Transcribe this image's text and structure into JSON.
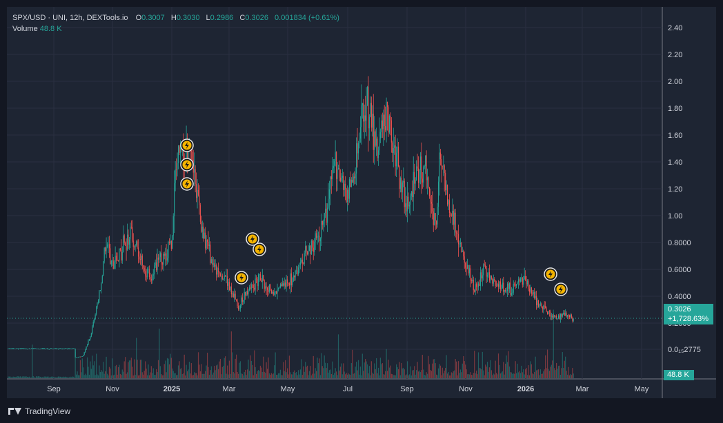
{
  "legend": {
    "symbol": "SPX/USD · UNI, 12h, DEXTools.io",
    "open_k": "O",
    "open_v": "0.3007",
    "high_k": "H",
    "high_v": "0.3030",
    "low_k": "L",
    "low_v": "0.2986",
    "close_k": "C",
    "close_v": "0.3026",
    "change": "0.001834 (+0.61%)",
    "volume_k": "Volume",
    "volume_v": "48.8 K"
  },
  "price_tag": {
    "price": "0.3026",
    "change": "+1,728.63%"
  },
  "volume_tag": "48.8 K",
  "footer": {
    "brand": "TradingView"
  },
  "colors": {
    "up": "#26a69a",
    "down": "#ef5350",
    "background": "#1e2533"
  },
  "chart_data": {
    "type": "candlestick",
    "price_axis": {
      "ticks": [
        "2.40",
        "2.20",
        "2.00",
        "1.80",
        "1.60",
        "1.40",
        "1.20",
        "1.00",
        "0.8000",
        "0.6000",
        "0.4000",
        "0.2000",
        "0.0₁₅2775"
      ]
    },
    "time_axis": {
      "labels": [
        {
          "t": "Sep",
          "bold": false
        },
        {
          "t": "Nov",
          "bold": false
        },
        {
          "t": "2025",
          "bold": true
        },
        {
          "t": "Mar",
          "bold": false
        },
        {
          "t": "May",
          "bold": false
        },
        {
          "t": "Jul",
          "bold": false
        },
        {
          "t": "Sep",
          "bold": false
        },
        {
          "t": "Nov",
          "bold": false
        },
        {
          "t": "2026",
          "bold": true
        },
        {
          "t": "Mar",
          "bold": false
        },
        {
          "t": "May",
          "bold": false
        }
      ]
    },
    "close_series": [
      [
        "2024-08-01",
        0.0003
      ],
      [
        "2024-09-01",
        0.0003
      ],
      [
        "2024-09-15",
        0.0003
      ],
      [
        "2024-10-01",
        0.02
      ],
      [
        "2024-10-10",
        0.2
      ],
      [
        "2024-10-20",
        0.55
      ],
      [
        "2024-10-25",
        0.9
      ],
      [
        "2024-11-01",
        0.68
      ],
      [
        "2024-11-10",
        0.82
      ],
      [
        "2024-11-20",
        0.95
      ],
      [
        "2024-12-01",
        0.7
      ],
      [
        "2024-12-10",
        0.6
      ],
      [
        "2024-12-20",
        0.75
      ],
      [
        "2025-01-01",
        0.85
      ],
      [
        "2025-01-05",
        1.45
      ],
      [
        "2025-01-10",
        1.6
      ],
      [
        "2025-01-15",
        1.45
      ],
      [
        "2025-01-20",
        1.65
      ],
      [
        "2025-02-01",
        0.95
      ],
      [
        "2025-02-15",
        0.65
      ],
      [
        "2025-03-01",
        0.55
      ],
      [
        "2025-03-10",
        0.38
      ],
      [
        "2025-03-20",
        0.5
      ],
      [
        "2025-04-01",
        0.6
      ],
      [
        "2025-04-15",
        0.5
      ],
      [
        "2025-05-01",
        0.55
      ],
      [
        "2025-05-15",
        0.72
      ],
      [
        "2025-06-01",
        0.9
      ],
      [
        "2025-06-10",
        1.1
      ],
      [
        "2025-06-20",
        1.5
      ],
      [
        "2025-07-01",
        1.2
      ],
      [
        "2025-07-10",
        1.45
      ],
      [
        "2025-07-15",
        1.7
      ],
      [
        "2025-07-20",
        1.95
      ],
      [
        "2025-07-25",
        1.85
      ],
      [
        "2025-08-01",
        1.55
      ],
      [
        "2025-08-10",
        1.9
      ],
      [
        "2025-08-20",
        1.5
      ],
      [
        "2025-09-01",
        1.1
      ],
      [
        "2025-09-10",
        1.35
      ],
      [
        "2025-09-20",
        1.45
      ],
      [
        "2025-10-01",
        0.95
      ],
      [
        "2025-10-05",
        1.55
      ],
      [
        "2025-10-10",
        1.3
      ],
      [
        "2025-10-20",
        1.0
      ],
      [
        "2025-11-01",
        0.7
      ],
      [
        "2025-11-10",
        0.5
      ],
      [
        "2025-11-20",
        0.68
      ],
      [
        "2025-12-01",
        0.55
      ],
      [
        "2025-12-15",
        0.52
      ],
      [
        "2026-01-01",
        0.6
      ],
      [
        "2026-01-10",
        0.45
      ],
      [
        "2026-01-20",
        0.38
      ],
      [
        "2026-02-01",
        0.3
      ],
      [
        "2026-02-10",
        0.35
      ],
      [
        "2026-02-20",
        0.3026
      ]
    ],
    "markers": [
      "lightning",
      "lightning",
      "lightning",
      "lightning",
      "lightning",
      "lightning",
      "lightning",
      "lightning"
    ]
  }
}
